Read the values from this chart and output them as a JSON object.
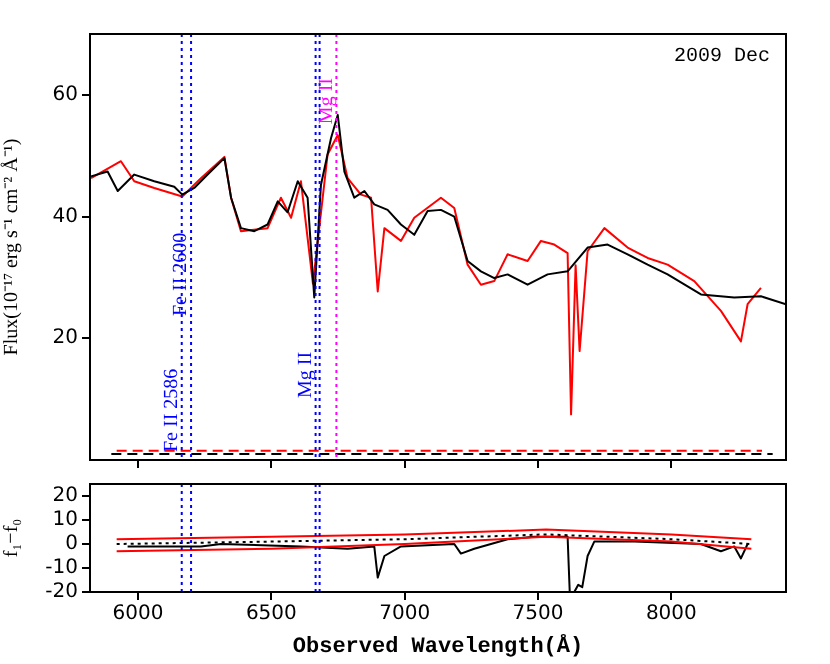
{
  "chart_data": [
    {
      "type": "line",
      "ylabel": "Flux(10⁻¹⁷ erg s⁻¹ cm⁻² Å⁻¹)",
      "xlim": [
        5820,
        8430
      ],
      "xticks": [
        6000,
        6500,
        7000,
        7500,
        8000
      ],
      "ylim": [
        0,
        70
      ],
      "yticks": [
        20,
        40,
        60
      ],
      "tick_labels": "y",
      "marker": "none",
      "annotations": [
        "2009 Dec"
      ],
      "ref_lines": [
        {
          "axis": "x",
          "value": 6164,
          "label": "Fe II 2586",
          "color": "#0000ff",
          "line_style": "dotted"
        },
        {
          "axis": "x",
          "value": 6199,
          "label": "Fe II 2600",
          "color": "#0000ff",
          "line_style": "dotted"
        },
        {
          "axis": "x",
          "value": 6666,
          "label": "Mg II",
          "color": "#0000ff",
          "line_style": "dotted"
        },
        {
          "axis": "x",
          "value": 6681,
          "color": "#0000ff",
          "line_style": "dotted"
        },
        {
          "axis": "x",
          "value": 6744,
          "label": "Mg II",
          "color": "#ff00ff",
          "line_style": "dotted"
        }
      ],
      "series": [
        {
          "color": "#000000",
          "line_style": "solid",
          "x": [
            5824,
            5886,
            5924,
            5986,
            6061,
            6136,
            6166,
            6211,
            6261,
            6324,
            6349,
            6386,
            6436,
            6486,
            6524,
            6561,
            6599,
            6636,
            6661,
            6686,
            6724,
            6749,
            6774,
            6811,
            6849,
            6886,
            6936,
            6986,
            7036,
            7086,
            7136,
            7186,
            7236,
            7286,
            7336,
            7386,
            7461,
            7536,
            7611,
            7686,
            7761,
            7836,
            7911,
            7986,
            8111,
            8236,
            8336,
            8430
          ],
          "values": [
            46.6,
            47.4,
            44.2,
            46.9,
            45.8,
            44.9,
            43.6,
            44.7,
            46.9,
            49.6,
            43.1,
            38.1,
            37.6,
            38.7,
            42.5,
            40.7,
            45.8,
            43.1,
            26.7,
            45.2,
            52.9,
            56.7,
            47.4,
            43.1,
            44.2,
            42.0,
            41.1,
            38.7,
            37.0,
            40.9,
            41.1,
            40.0,
            32.7,
            31.0,
            29.9,
            30.5,
            28.8,
            30.5,
            31.0,
            34.9,
            35.4,
            33.8,
            32.1,
            30.5,
            27.2,
            26.7,
            26.9,
            25.6
          ]
        },
        {
          "color": "#ff0000",
          "line_style": "solid",
          "x": [
            5824,
            5936,
            5986,
            6061,
            6166,
            6236,
            6324,
            6349,
            6386,
            6486,
            6536,
            6574,
            6611,
            6656,
            6711,
            6749,
            6786,
            6836,
            6874,
            6899,
            6924,
            6986,
            7036,
            7136,
            7186,
            7236,
            7286,
            7336,
            7386,
            7461,
            7511,
            7561,
            7611,
            7624,
            7641,
            7656,
            7686,
            7749,
            7836,
            7911,
            7986,
            8086,
            8186,
            8261,
            8286,
            8336
          ],
          "values": [
            46.3,
            49.1,
            45.8,
            44.7,
            43.3,
            46.3,
            49.8,
            43.1,
            37.6,
            38.1,
            43.1,
            39.8,
            45.8,
            29.0,
            50.2,
            53.4,
            46.3,
            43.6,
            43.1,
            27.7,
            38.1,
            36.0,
            39.8,
            43.1,
            41.4,
            32.1,
            28.8,
            29.4,
            33.8,
            32.7,
            36.0,
            35.4,
            34.0,
            7.5,
            32.0,
            17.9,
            34.3,
            38.1,
            34.9,
            33.2,
            32.1,
            29.4,
            24.5,
            19.5,
            25.6,
            28.3
          ]
        },
        {
          "color": "#000000",
          "line_style": "dashed",
          "x": [
            5900,
            6500,
            7000,
            7500,
            8000,
            8380
          ],
          "values": [
            1,
            1,
            1,
            1,
            1,
            1
          ]
        },
        {
          "color": "#ff0000",
          "line_style": "dashed",
          "x": [
            5920,
            6500,
            7000,
            7500,
            8000,
            8340
          ],
          "values": [
            1.5,
            1.5,
            1.5,
            1.5,
            1.5,
            1.5
          ]
        }
      ]
    },
    {
      "type": "line",
      "xlabel": "Observed Wavelength(Å)",
      "ylabel": "f₁−f₀",
      "xlim": [
        5820,
        8430
      ],
      "xticks": [
        6000,
        6500,
        7000,
        7500,
        8000
      ],
      "ylim": [
        -20,
        25
      ],
      "yticks": [
        -20,
        -10,
        0,
        10,
        20
      ],
      "marker": "none",
      "ref_lines": [
        {
          "axis": "x",
          "value": 6164,
          "color": "#0000ff",
          "line_style": "dotted"
        },
        {
          "axis": "x",
          "value": 6199,
          "color": "#0000ff",
          "line_style": "dotted"
        },
        {
          "axis": "x",
          "value": 6666,
          "color": "#0000ff",
          "line_style": "dotted"
        },
        {
          "axis": "x",
          "value": 6681,
          "color": "#0000ff",
          "line_style": "dotted"
        }
      ],
      "series": [
        {
          "color": "#ff0000",
          "line_style": "solid",
          "x": [
            5920,
            6500,
            7000,
            7530,
            8000,
            8300
          ],
          "values": [
            2,
            3,
            4,
            6,
            4,
            2
          ]
        },
        {
          "color": "#ff0000",
          "line_style": "solid",
          "x": [
            5920,
            6500,
            7000,
            7530,
            8000,
            8300
          ],
          "values": [
            -3,
            -2,
            0,
            3,
            1,
            -2
          ]
        },
        {
          "color": "#000000",
          "line_style": "dotted",
          "x": [
            5920,
            6500,
            7000,
            7530,
            8000,
            8300
          ],
          "values": [
            0,
            1,
            2,
            4,
            2,
            0
          ]
        },
        {
          "color": "#000000",
          "line_style": "solid",
          "x": [
            5961,
            6236,
            6311,
            6611,
            6786,
            6886,
            6899,
            6924,
            6986,
            7186,
            7211,
            7261,
            7386,
            7486,
            7611,
            7619,
            7636,
            7651,
            7666,
            7686,
            7711,
            7861,
            8111,
            8186,
            8236,
            8261,
            8286
          ],
          "values": [
            -1,
            -1,
            0,
            -1,
            -2,
            -1,
            -14,
            -5,
            -1,
            0,
            -4,
            -2,
            2,
            3,
            3,
            -20,
            -20,
            -17,
            -18,
            -5,
            1,
            1,
            0,
            -3,
            -1,
            -6,
            0
          ]
        }
      ]
    }
  ]
}
